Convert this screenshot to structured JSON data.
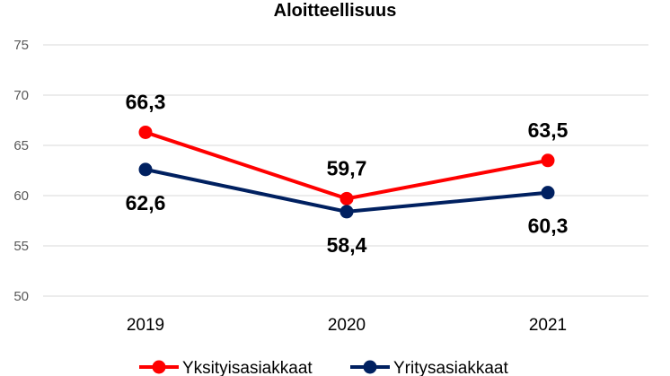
{
  "chart_data": {
    "type": "line",
    "title": "Aloitteellisuus",
    "categories": [
      "2019",
      "2020",
      "2021"
    ],
    "ylim": [
      50,
      75
    ],
    "yticks": [
      50,
      55,
      60,
      65,
      70,
      75
    ],
    "grid": true,
    "legend_position": "bottom",
    "series": [
      {
        "name": "Yksityisasiakkaat",
        "color": "#ff0000",
        "values": [
          66.3,
          59.7,
          63.5
        ],
        "labels": [
          "66,3",
          "59,7",
          "63,5"
        ],
        "label_side": [
          "above",
          "above",
          "above"
        ]
      },
      {
        "name": "Yritysasiakkaat",
        "color": "#002060",
        "values": [
          62.6,
          58.4,
          60.3
        ],
        "labels": [
          "62,6",
          "58,4",
          "60,3"
        ],
        "label_side": [
          "below",
          "below",
          "below"
        ]
      }
    ]
  }
}
